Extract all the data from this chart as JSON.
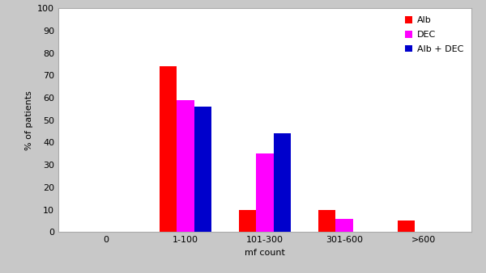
{
  "categories": [
    "0",
    "1-100",
    "101-300",
    "301-600",
    ">600"
  ],
  "series": [
    {
      "label": "Alb",
      "color": "#ff0000",
      "values": [
        0,
        74,
        10,
        10,
        5
      ]
    },
    {
      "label": "DEC",
      "color": "#ff00ff",
      "values": [
        0,
        59,
        35,
        6,
        0
      ]
    },
    {
      "label": "Alb + DEC",
      "color": "#0000cc",
      "values": [
        0,
        56,
        44,
        0,
        0
      ]
    }
  ],
  "ylabel": "% of patients",
  "xlabel": "mf count",
  "ylim": [
    0,
    100
  ],
  "yticks": [
    0,
    10,
    20,
    30,
    40,
    50,
    60,
    70,
    80,
    90,
    100
  ],
  "bar_width": 0.22,
  "figure_facecolor": "#c8c8c8",
  "plot_facecolor": "#ffffff",
  "spine_color": "#aaaaaa",
  "legend_fontsize": 8,
  "axis_label_fontsize": 8,
  "tick_fontsize": 8
}
